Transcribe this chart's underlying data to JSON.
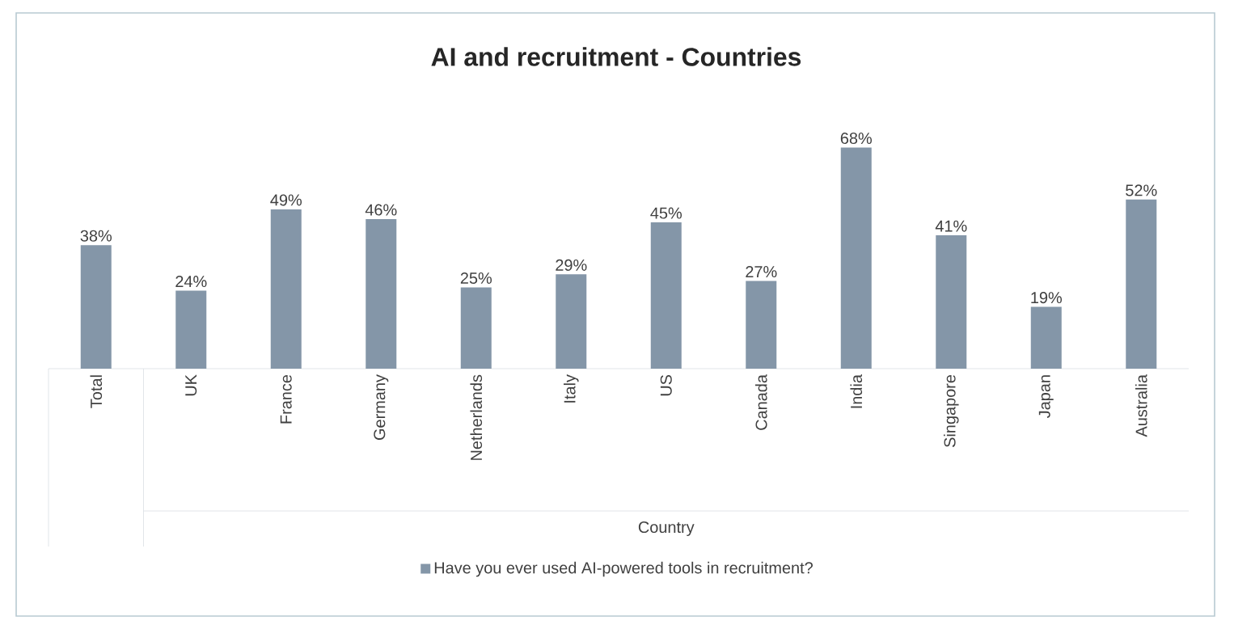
{
  "chart_data": {
    "type": "bar",
    "title": "AI and recruitment - Countries",
    "xlabel": "Country",
    "categories": [
      "Total",
      "UK",
      "France",
      "Germany",
      "Netherlands",
      "Italy",
      "US",
      "Canada",
      "India",
      "Singapore",
      "Japan",
      "Australia"
    ],
    "series": [
      {
        "name": "Have you ever used AI-powered tools in recruitment?",
        "color": "#8496a8",
        "values": [
          38,
          24,
          49,
          46,
          25,
          29,
          45,
          27,
          68,
          41,
          19,
          52
        ],
        "value_labels": [
          "38%",
          "24%",
          "49%",
          "46%",
          "25%",
          "29%",
          "45%",
          "27%",
          "68%",
          "41%",
          "19%",
          "52%"
        ]
      }
    ],
    "legend": "bottom"
  }
}
